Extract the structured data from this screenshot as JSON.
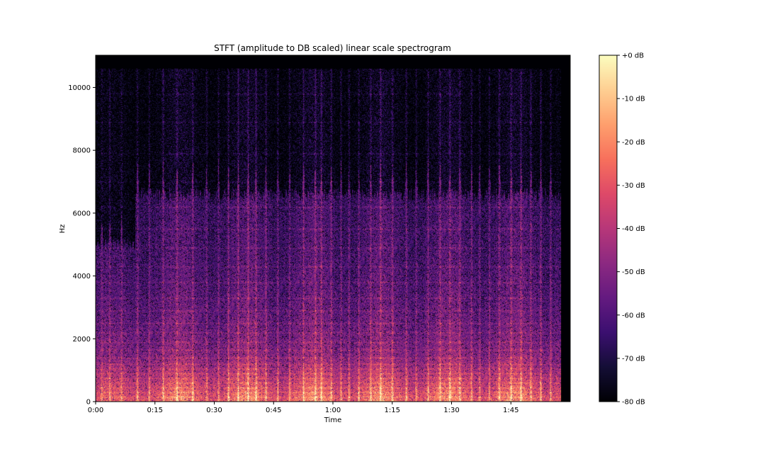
{
  "chart_data": {
    "type": "heatmap",
    "title": "STFT (amplitude to DB scaled) linear scale spectrogram",
    "xlabel": "Time",
    "ylabel": "Hz",
    "x_ticks": [
      "0:00",
      "0:15",
      "0:30",
      "0:45",
      "1:00",
      "1:15",
      "1:30",
      "1:45"
    ],
    "x_tick_seconds": [
      0,
      15,
      30,
      45,
      60,
      75,
      90,
      105
    ],
    "xlim_seconds": [
      0,
      120
    ],
    "audio_end_seconds": 117.5,
    "y_ticks": [
      "0",
      "2000",
      "4000",
      "6000",
      "8000",
      "10000"
    ],
    "y_tick_values": [
      0,
      2000,
      4000,
      6000,
      8000,
      10000
    ],
    "ylim": [
      0,
      11025
    ],
    "max_content_hz": 10600,
    "colormap": "magma",
    "colorbar": {
      "ticks": [
        "+0 dB",
        "-10 dB",
        "-20 dB",
        "-30 dB",
        "-40 dB",
        "-50 dB",
        "-60 dB",
        "-70 dB",
        "-80 dB"
      ],
      "tick_values": [
        0,
        -10,
        -20,
        -30,
        -40,
        -50,
        -60,
        -70,
        -80
      ],
      "range": [
        -80,
        0
      ],
      "placement": "right"
    },
    "colormap_stops": [
      "#000004",
      "#140e36",
      "#3b0f70",
      "#641a80",
      "#8c2981",
      "#b73779",
      "#de4968",
      "#f7705c",
      "#fe9f6d",
      "#fecf92",
      "#fcfdbf"
    ],
    "loud_events_seconds": [
      1.5,
      3.5,
      6.5,
      10.5,
      13.5,
      17,
      20.5,
      24.5,
      28,
      31,
      33.5,
      36,
      38.5,
      40.5,
      43,
      46,
      49,
      52.5,
      55.5,
      57,
      59.5,
      62,
      64,
      66.5,
      69.5,
      72,
      75,
      78.5,
      81,
      84,
      87,
      89.5,
      92,
      95,
      97,
      99.5,
      102,
      105,
      107.5,
      110,
      112.5,
      115
    ],
    "harmonic_bands_hz": [
      150,
      300,
      450,
      600,
      750,
      900,
      1050,
      1200,
      1400,
      1650,
      1900,
      2200,
      2500,
      2900,
      3300,
      3800,
      4300,
      4900,
      5500,
      6200,
      7000,
      7900,
      8900,
      9800
    ],
    "grid": false
  }
}
